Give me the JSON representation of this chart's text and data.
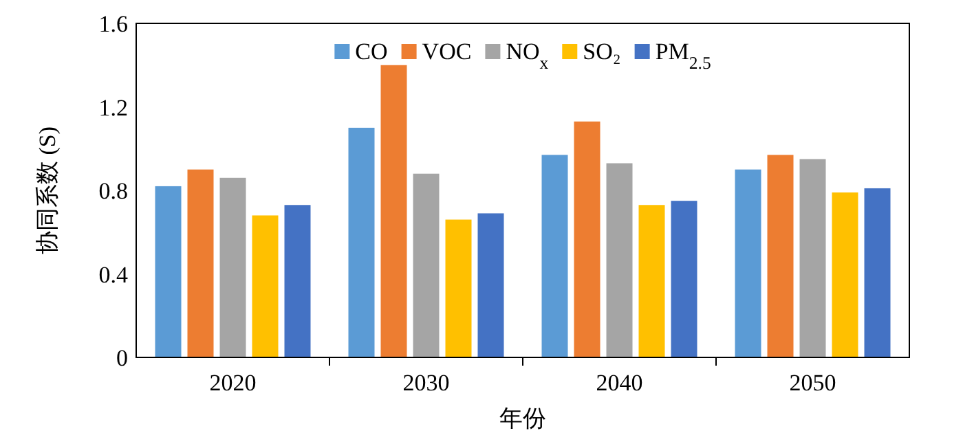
{
  "chart_data": {
    "type": "bar",
    "xlabel": "年份",
    "ylabel": "协同系数 (S)",
    "categories": [
      "2020",
      "2030",
      "2040",
      "2050"
    ],
    "ylim": [
      0,
      1.6
    ],
    "yticks": [
      0,
      0.4,
      0.8,
      1.2,
      1.6
    ],
    "legend": "top",
    "grid": false,
    "series": [
      {
        "name": "CO",
        "color": "#5b9bd5",
        "values": [
          0.82,
          1.1,
          0.97,
          0.9
        ]
      },
      {
        "name": "VOC",
        "color": "#ed7d31",
        "values": [
          0.9,
          1.4,
          1.13,
          0.97
        ]
      },
      {
        "name": "NO$_{x}$",
        "color": "#a5a5a5",
        "values": [
          0.86,
          0.88,
          0.93,
          0.95
        ]
      },
      {
        "name": "SO₂",
        "color": "#ffc000",
        "values": [
          0.68,
          0.66,
          0.73,
          0.79
        ]
      },
      {
        "name": "PM$_{2.5}$",
        "color": "#4472c4",
        "values": [
          0.73,
          0.69,
          0.75,
          0.81
        ]
      }
    ]
  }
}
